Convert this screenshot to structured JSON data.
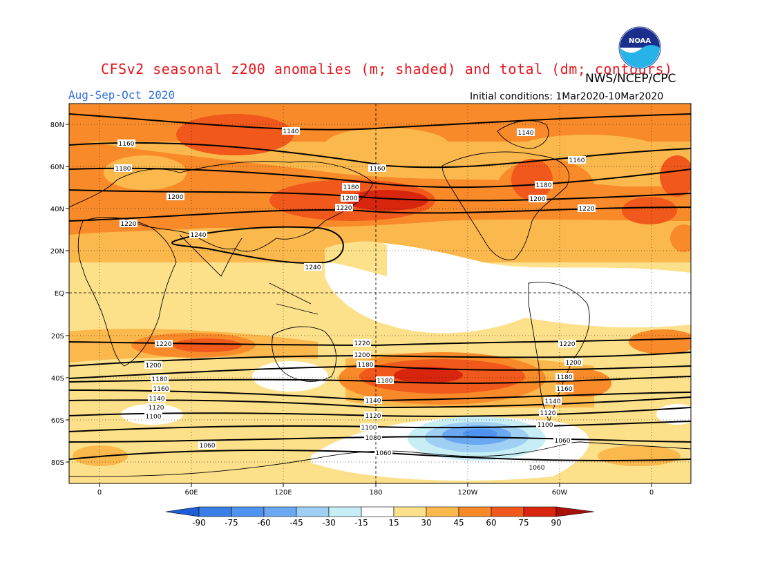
{
  "title": "CFSv2 seasonal z200 anomalies (m; shaded) and total (dm; contours)",
  "season": "Aug-Sep-Oct 2020",
  "agency": "NWS/NCEP/CPC",
  "initial_conditions": "Initial conditions: 1Mar2020-10Mar2020",
  "logo_text": "NOAA",
  "lat_labels": [
    "80N",
    "60N",
    "40N",
    "20N",
    "EQ",
    "20S",
    "40S",
    "60S",
    "80S"
  ],
  "lon_labels": [
    "0",
    "60E",
    "120E",
    "180",
    "120W",
    "60W",
    "0"
  ],
  "colorbar": {
    "ticks": [
      "-90",
      "-75",
      "-60",
      "-45",
      "-30",
      "-15",
      "15",
      "30",
      "45",
      "60",
      "75",
      "90"
    ],
    "colors": [
      "#1c5fd6",
      "#3a7fe6",
      "#4f93ee",
      "#6aa8f2",
      "#9fd0f4",
      "#c6eef4",
      "#ffffff",
      "#fde08a",
      "#fbb84c",
      "#f88a2a",
      "#f0581c",
      "#d8260e",
      "#a8100a"
    ]
  },
  "contour_labels": [
    "1140",
    "1160",
    "1180",
    "1200",
    "1220",
    "1240",
    "1100",
    "1120",
    "1080",
    "1060"
  ]
}
